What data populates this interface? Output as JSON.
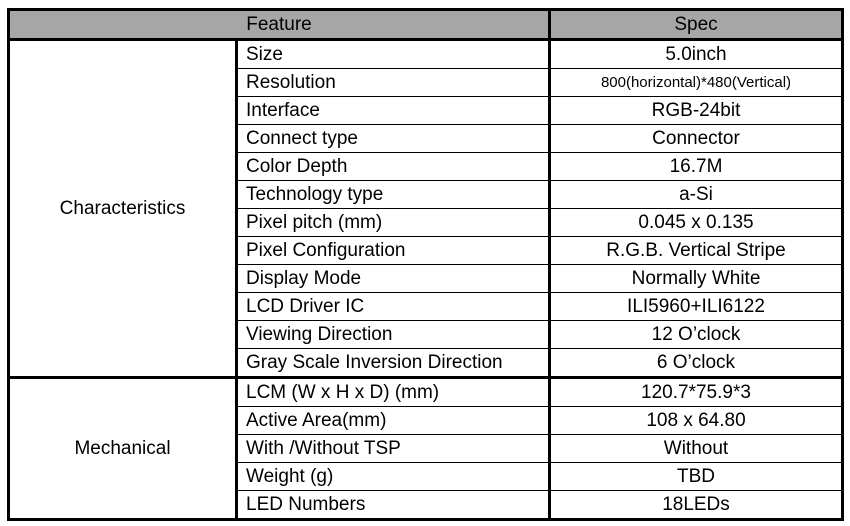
{
  "header": {
    "feature": "Feature",
    "spec": "Spec"
  },
  "groups": [
    {
      "name": "Characteristics",
      "rows": [
        {
          "feature": "Size",
          "spec": "5.0inch"
        },
        {
          "feature": "Resolution",
          "spec": "800(horizontal)*480(Vertical)"
        },
        {
          "feature": "Interface",
          "spec": "RGB-24bit"
        },
        {
          "feature": "Connect type",
          "spec": "Connector"
        },
        {
          "feature": "Color Depth",
          "spec": "16.7M"
        },
        {
          "feature": "Technology type",
          "spec": "a-Si"
        },
        {
          "feature": "Pixel pitch (mm)",
          "spec": "0.045 x 0.135"
        },
        {
          "feature": "Pixel Configuration",
          "spec": "R.G.B. Vertical Stripe"
        },
        {
          "feature": "Display Mode",
          "spec": "Normally White"
        },
        {
          "feature": "LCD Driver IC",
          "spec": "ILI5960+ILI6122"
        },
        {
          "feature": "Viewing Direction",
          "spec": "12 O’clock"
        },
        {
          "feature": "Gray Scale Inversion Direction",
          "spec": "6 O’clock"
        }
      ]
    },
    {
      "name": "Mechanical",
      "rows": [
        {
          "feature": "LCM (W x H x D) (mm)",
          "spec": "120.7*75.9*3"
        },
        {
          "feature": "Active Area(mm)",
          "spec": "108 x 64.80"
        },
        {
          "feature": "With /Without TSP",
          "spec": "Without"
        },
        {
          "feature": "Weight (g)",
          "spec": "TBD"
        },
        {
          "feature": "LED Numbers",
          "spec": "18LEDs"
        }
      ]
    }
  ]
}
